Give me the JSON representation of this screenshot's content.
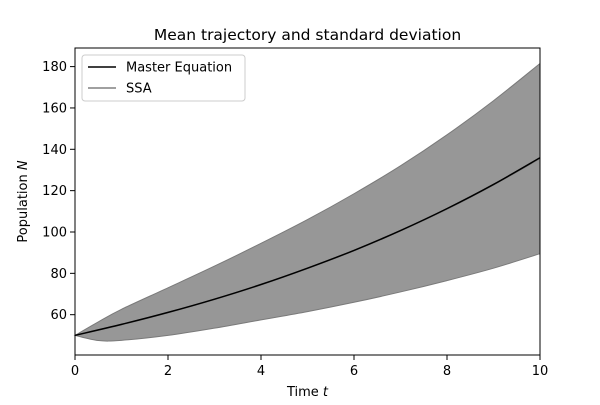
{
  "chart_data": {
    "type": "line",
    "title": "Mean trajectory and standard deviation",
    "xlabel": {
      "prefix": "Time ",
      "var": "t"
    },
    "ylabel": {
      "prefix": "Population ",
      "var": "N"
    },
    "xlim": [
      0,
      10
    ],
    "ylim": [
      40.5,
      189
    ],
    "xticks": [
      0,
      2,
      4,
      6,
      8,
      10
    ],
    "yticks": [
      60,
      80,
      100,
      120,
      140,
      160,
      180
    ],
    "grid": false,
    "legend_position": "upper-left",
    "series": [
      {
        "name": "Master Equation",
        "color": "#000000",
        "style": "line",
        "x": [
          0,
          1,
          2,
          3,
          4,
          5,
          6,
          7,
          8,
          9,
          10
        ],
        "y": [
          50,
          55.3,
          61.1,
          67.5,
          74.6,
          82.5,
          91.1,
          100.7,
          111.3,
          123.0,
          135.9
        ]
      },
      {
        "name": "SSA",
        "color": "#808080",
        "style": "line",
        "x": [
          0,
          1,
          2,
          3,
          4,
          5,
          6,
          7,
          8,
          9,
          10
        ],
        "y": [
          50,
          55.2,
          61.0,
          67.4,
          74.5,
          82.4,
          91.0,
          100.6,
          111.1,
          122.8,
          135.6
        ]
      }
    ],
    "band": {
      "color": "#808080",
      "x": [
        0,
        0.5,
        1,
        2,
        3,
        4,
        5,
        6,
        7,
        8,
        9,
        10
      ],
      "upper": [
        50,
        56.5,
        62.6,
        73.0,
        83.5,
        94.5,
        106.0,
        118.5,
        132.0,
        147.0,
        163.5,
        181.5
      ],
      "lower": [
        50,
        47.5,
        47.6,
        50.0,
        53.5,
        57.5,
        61.5,
        66.0,
        71.0,
        76.5,
        82.5,
        89.5
      ]
    }
  }
}
